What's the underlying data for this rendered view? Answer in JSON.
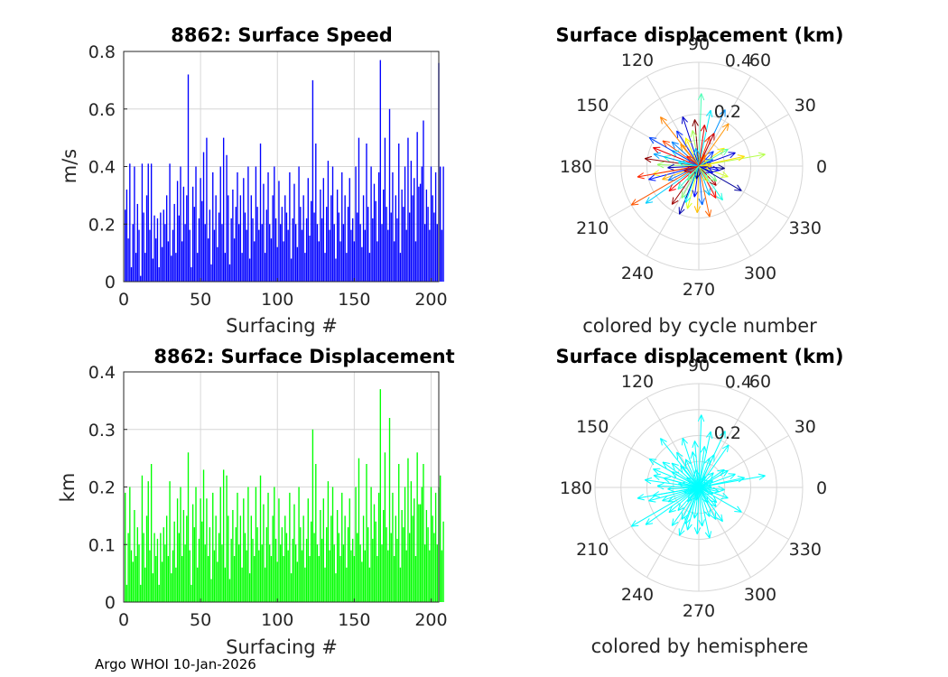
{
  "footer": "Argo WHOI 10-Jan-2026",
  "colors": {
    "speed_bar": "#0000ff",
    "disp_bar": "#00ff00",
    "hemisphere": "#00ffff",
    "grid": "#d6d6d6",
    "axis": "#262626"
  },
  "chart_data": [
    {
      "id": "speed",
      "type": "bar",
      "title": "8862: Surface Speed",
      "xlabel": "Surfacing #",
      "ylabel": "m/s",
      "xlim": [
        0,
        205
      ],
      "ylim": [
        0,
        0.8
      ],
      "xticks": [
        0,
        50,
        100,
        150,
        200
      ],
      "yticks": [
        0,
        0.2,
        0.4,
        0.6,
        0.8
      ],
      "ytick_labels": [
        "0",
        "0.2",
        "0.4",
        "0.6",
        "0.8"
      ],
      "grid": true,
      "x_start": 1,
      "values": [
        0.25,
        0.32,
        0.15,
        0.41,
        0.05,
        0.2,
        0.4,
        0.1,
        0.27,
        0.18,
        0.02,
        0.41,
        0.24,
        0.1,
        0.3,
        0.41,
        0.18,
        0.41,
        0.08,
        0.23,
        0.15,
        0.22,
        0.05,
        0.24,
        0.12,
        0.25,
        0.2,
        0.3,
        0.14,
        0.41,
        0.09,
        0.18,
        0.27,
        0.1,
        0.35,
        0.23,
        0.4,
        0.14,
        0.33,
        0.2,
        0.3,
        0.72,
        0.18,
        0.05,
        0.33,
        0.26,
        0.4,
        0.1,
        0.22,
        0.36,
        0.28,
        0.45,
        0.2,
        0.5,
        0.15,
        0.25,
        0.06,
        0.38,
        0.18,
        0.3,
        0.12,
        0.24,
        0.4,
        0.2,
        0.5,
        0.1,
        0.44,
        0.3,
        0.06,
        0.22,
        0.32,
        0.15,
        0.26,
        0.38,
        0.2,
        0.3,
        0.1,
        0.36,
        0.24,
        0.18,
        0.4,
        0.08,
        0.3,
        0.22,
        0.14,
        0.4,
        0.26,
        0.18,
        0.48,
        0.2,
        0.34,
        0.1,
        0.25,
        0.38,
        0.2,
        0.15,
        0.3,
        0.4,
        0.22,
        0.12,
        0.35,
        0.2,
        0.26,
        0.14,
        0.3,
        0.24,
        0.18,
        0.38,
        0.08,
        0.22,
        0.34,
        0.2,
        0.12,
        0.4,
        0.26,
        0.18,
        0.3,
        0.1,
        0.22,
        0.36,
        0.16,
        0.28,
        0.7,
        0.24,
        0.48,
        0.2,
        0.14,
        0.32,
        0.22,
        0.36,
        0.1,
        0.26,
        0.42,
        0.18,
        0.3,
        0.4,
        0.2,
        0.08,
        0.32,
        0.24,
        0.14,
        0.38,
        0.2,
        0.3,
        0.1,
        0.26,
        0.36,
        0.18,
        0.22,
        0.14,
        0.4,
        0.24,
        0.5,
        0.2,
        0.12,
        0.3,
        0.18,
        0.48,
        0.26,
        0.1,
        0.4,
        0.22,
        0.34,
        0.28,
        0.14,
        0.38,
        0.77,
        0.2,
        0.32,
        0.5,
        0.26,
        0.18,
        0.6,
        0.24,
        0.38,
        0.14,
        0.3,
        0.22,
        0.48,
        0.1,
        0.32,
        0.26,
        0.4,
        0.18,
        0.5,
        0.24,
        0.42,
        0.3,
        0.36,
        0.14,
        0.52,
        0.33,
        0.34,
        0.4,
        0.56,
        0.2,
        0.32,
        0.26,
        0.18,
        0.4,
        0.3,
        0.24,
        0.38,
        0.2,
        0.76,
        0.4,
        0.18,
        0.4
      ]
    },
    {
      "id": "displacement",
      "type": "bar",
      "title": "8862: Surface Displacement",
      "xlabel": "Surfacing #",
      "ylabel": "km",
      "xlim": [
        0,
        205
      ],
      "ylim": [
        0,
        0.4
      ],
      "xticks": [
        0,
        50,
        100,
        150,
        200
      ],
      "yticks": [
        0,
        0.1,
        0.2,
        0.3,
        0.4
      ],
      "ytick_labels": [
        "0",
        "0.1",
        "0.2",
        "0.3",
        "0.4"
      ],
      "grid": true,
      "x_start": 1,
      "values": [
        0.19,
        0.03,
        0.12,
        0.2,
        0.09,
        0.07,
        0.16,
        0.08,
        0.13,
        0.1,
        0.03,
        0.22,
        0.12,
        0.06,
        0.15,
        0.21,
        0.09,
        0.24,
        0.05,
        0.12,
        0.08,
        0.11,
        0.03,
        0.12,
        0.07,
        0.13,
        0.1,
        0.15,
        0.08,
        0.21,
        0.05,
        0.09,
        0.14,
        0.06,
        0.18,
        0.12,
        0.2,
        0.08,
        0.16,
        0.1,
        0.15,
        0.26,
        0.09,
        0.03,
        0.17,
        0.13,
        0.2,
        0.06,
        0.11,
        0.18,
        0.14,
        0.23,
        0.1,
        0.18,
        0.08,
        0.13,
        0.04,
        0.19,
        0.09,
        0.15,
        0.07,
        0.12,
        0.2,
        0.1,
        0.23,
        0.06,
        0.22,
        0.15,
        0.04,
        0.11,
        0.16,
        0.08,
        0.13,
        0.19,
        0.1,
        0.15,
        0.06,
        0.18,
        0.12,
        0.09,
        0.2,
        0.05,
        0.15,
        0.11,
        0.08,
        0.2,
        0.13,
        0.09,
        0.22,
        0.1,
        0.17,
        0.06,
        0.13,
        0.19,
        0.1,
        0.08,
        0.15,
        0.2,
        0.11,
        0.07,
        0.18,
        0.1,
        0.13,
        0.08,
        0.15,
        0.12,
        0.09,
        0.19,
        0.05,
        0.11,
        0.17,
        0.1,
        0.07,
        0.2,
        0.13,
        0.09,
        0.15,
        0.06,
        0.11,
        0.18,
        0.08,
        0.14,
        0.3,
        0.12,
        0.24,
        0.1,
        0.08,
        0.16,
        0.11,
        0.18,
        0.06,
        0.13,
        0.21,
        0.09,
        0.15,
        0.2,
        0.1,
        0.05,
        0.16,
        0.12,
        0.08,
        0.19,
        0.1,
        0.15,
        0.06,
        0.13,
        0.18,
        0.09,
        0.11,
        0.08,
        0.2,
        0.12,
        0.25,
        0.1,
        0.07,
        0.15,
        0.09,
        0.24,
        0.13,
        0.06,
        0.2,
        0.11,
        0.17,
        0.14,
        0.08,
        0.19,
        0.37,
        0.1,
        0.16,
        0.26,
        0.13,
        0.09,
        0.32,
        0.12,
        0.19,
        0.08,
        0.15,
        0.11,
        0.24,
        0.06,
        0.16,
        0.13,
        0.2,
        0.09,
        0.25,
        0.12,
        0.21,
        0.15,
        0.18,
        0.08,
        0.26,
        0.17,
        0.17,
        0.2,
        0.24,
        0.1,
        0.16,
        0.13,
        0.09,
        0.2,
        0.15,
        0.12,
        0.19,
        0.1,
        0.2,
        0.22,
        0.09,
        0.14
      ]
    },
    {
      "id": "polar_cycle",
      "type": "polar-vectors",
      "title": "Surface displacement (km)",
      "caption": "colored by cycle number",
      "rmax": 0.4,
      "rings": [
        0.1,
        0.2,
        0.3,
        0.4
      ],
      "ring_labels": [
        {
          "r": 0.2,
          "label": "0.2"
        },
        {
          "r": 0.4,
          "label": "0.4"
        }
      ],
      "angle_labels": [
        "0",
        "30",
        "60",
        "90",
        "120",
        "150",
        "180",
        "210",
        "240",
        "270",
        "300",
        "330"
      ],
      "angle_values_deg": [
        0,
        30,
        60,
        90,
        120,
        150,
        180,
        210,
        240,
        270,
        300,
        330
      ],
      "colormap": "jet",
      "vectors_deg_km": [
        [
          355,
          0.1
        ],
        [
          10,
          0.26
        ],
        [
          20,
          0.15
        ],
        [
          35,
          0.12
        ],
        [
          45,
          0.08
        ],
        [
          55,
          0.2
        ],
        [
          65,
          0.24
        ],
        [
          70,
          0.12
        ],
        [
          78,
          0.22
        ],
        [
          82,
          0.16
        ],
        [
          88,
          0.28
        ],
        [
          95,
          0.18
        ],
        [
          100,
          0.14
        ],
        [
          108,
          0.2
        ],
        [
          115,
          0.12
        ],
        [
          122,
          0.16
        ],
        [
          130,
          0.11
        ],
        [
          138,
          0.14
        ],
        [
          145,
          0.17
        ],
        [
          150,
          0.12
        ],
        [
          158,
          0.19
        ],
        [
          165,
          0.14
        ],
        [
          172,
          0.21
        ],
        [
          178,
          0.16
        ],
        [
          183,
          0.12
        ],
        [
          190,
          0.18
        ],
        [
          195,
          0.2
        ],
        [
          200,
          0.15
        ],
        [
          205,
          0.13
        ],
        [
          210,
          0.3
        ],
        [
          215,
          0.25
        ],
        [
          220,
          0.15
        ],
        [
          228,
          0.12
        ],
        [
          235,
          0.18
        ],
        [
          242,
          0.14
        ],
        [
          248,
          0.2
        ],
        [
          255,
          0.17
        ],
        [
          262,
          0.12
        ],
        [
          268,
          0.18
        ],
        [
          275,
          0.15
        ],
        [
          282,
          0.2
        ],
        [
          290,
          0.12
        ],
        [
          298,
          0.14
        ],
        [
          305,
          0.16
        ],
        [
          312,
          0.1
        ],
        [
          320,
          0.09
        ],
        [
          330,
          0.19
        ],
        [
          340,
          0.12
        ],
        [
          348,
          0.08
        ],
        [
          2,
          0.05
        ],
        [
          25,
          0.06
        ],
        [
          60,
          0.05
        ],
        [
          100,
          0.07
        ],
        [
          140,
          0.06
        ],
        [
          170,
          0.08
        ],
        [
          200,
          0.06
        ],
        [
          232,
          0.07
        ],
        [
          260,
          0.05
        ],
        [
          300,
          0.07
        ],
        [
          335,
          0.06
        ],
        [
          12,
          0.18
        ],
        [
          150,
          0.22
        ],
        [
          128,
          0.24
        ],
        [
          165,
          0.18
        ],
        [
          190,
          0.24
        ],
        [
          250,
          0.15
        ],
        [
          65,
          0.14
        ],
        [
          30,
          0.13
        ]
      ]
    },
    {
      "id": "polar_hemisphere",
      "type": "polar-vectors",
      "title": "Surface displacement (km)",
      "caption": "colored by hemisphere",
      "rmax": 0.4,
      "rings": [
        0.1,
        0.2,
        0.3,
        0.4
      ],
      "ring_labels": [
        {
          "r": 0.2,
          "label": "0.2"
        },
        {
          "r": 0.4,
          "label": "0.4"
        }
      ],
      "angle_labels": [
        "0",
        "30",
        "60",
        "90",
        "120",
        "150",
        "180",
        "210",
        "240",
        "270",
        "300",
        "330"
      ],
      "angle_values_deg": [
        0,
        30,
        60,
        90,
        120,
        150,
        180,
        210,
        240,
        270,
        300,
        330
      ],
      "color": "#00ffff",
      "vectors_deg_km": [
        [
          355,
          0.1
        ],
        [
          10,
          0.26
        ],
        [
          20,
          0.15
        ],
        [
          35,
          0.12
        ],
        [
          45,
          0.08
        ],
        [
          55,
          0.2
        ],
        [
          65,
          0.24
        ],
        [
          70,
          0.12
        ],
        [
          78,
          0.22
        ],
        [
          82,
          0.16
        ],
        [
          88,
          0.28
        ],
        [
          95,
          0.18
        ],
        [
          100,
          0.14
        ],
        [
          108,
          0.2
        ],
        [
          115,
          0.12
        ],
        [
          122,
          0.16
        ],
        [
          130,
          0.11
        ],
        [
          138,
          0.14
        ],
        [
          145,
          0.17
        ],
        [
          150,
          0.12
        ],
        [
          158,
          0.19
        ],
        [
          165,
          0.14
        ],
        [
          172,
          0.21
        ],
        [
          178,
          0.16
        ],
        [
          183,
          0.12
        ],
        [
          190,
          0.18
        ],
        [
          195,
          0.2
        ],
        [
          200,
          0.15
        ],
        [
          205,
          0.13
        ],
        [
          210,
          0.3
        ],
        [
          215,
          0.25
        ],
        [
          220,
          0.15
        ],
        [
          228,
          0.12
        ],
        [
          235,
          0.18
        ],
        [
          242,
          0.14
        ],
        [
          248,
          0.2
        ],
        [
          255,
          0.17
        ],
        [
          262,
          0.12
        ],
        [
          268,
          0.18
        ],
        [
          275,
          0.15
        ],
        [
          282,
          0.2
        ],
        [
          290,
          0.12
        ],
        [
          298,
          0.14
        ],
        [
          305,
          0.16
        ],
        [
          312,
          0.1
        ],
        [
          320,
          0.09
        ],
        [
          330,
          0.19
        ],
        [
          340,
          0.12
        ],
        [
          348,
          0.08
        ],
        [
          2,
          0.05
        ],
        [
          25,
          0.06
        ],
        [
          60,
          0.05
        ],
        [
          100,
          0.07
        ],
        [
          140,
          0.06
        ],
        [
          170,
          0.08
        ],
        [
          200,
          0.06
        ],
        [
          232,
          0.07
        ],
        [
          260,
          0.05
        ],
        [
          300,
          0.07
        ],
        [
          335,
          0.06
        ],
        [
          12,
          0.18
        ],
        [
          150,
          0.22
        ],
        [
          128,
          0.24
        ],
        [
          165,
          0.18
        ],
        [
          190,
          0.24
        ],
        [
          250,
          0.15
        ],
        [
          65,
          0.14
        ],
        [
          30,
          0.13
        ]
      ]
    }
  ]
}
